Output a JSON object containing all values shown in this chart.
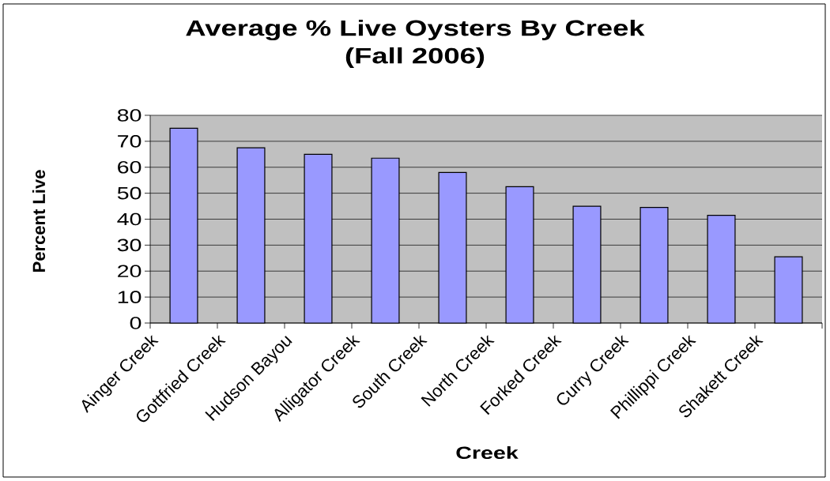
{
  "chart_data": {
    "type": "bar",
    "title": "Average % Live Oysters By Creek",
    "subtitle": "(Fall 2006)",
    "xlabel": "Creek",
    "ylabel": "Percent Live",
    "categories": [
      "Ainger Creek",
      "Gottfried Creek",
      "Hudson Bayou",
      "Alligator Creek",
      "South Creek",
      "North Creek",
      "Forked Creek",
      "Curry Creek",
      "Phillippi Creek",
      "Shakett Creek"
    ],
    "values": [
      75,
      67.5,
      65,
      63.5,
      58,
      52.5,
      45,
      44.5,
      41.5,
      25.5
    ],
    "color": "#9999ff",
    "ylim": [
      0,
      80
    ],
    "yticks": [
      0,
      10,
      20,
      30,
      40,
      50,
      60,
      70,
      80
    ],
    "grid": "y"
  }
}
